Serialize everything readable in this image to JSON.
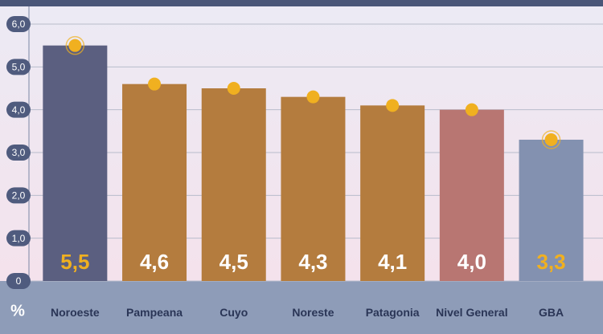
{
  "chart_data": {
    "type": "bar",
    "categories": [
      "Noroeste",
      "Pampeana",
      "Cuyo",
      "Noreste",
      "Patagonia",
      "Nivel General",
      "GBA"
    ],
    "values": [
      5.5,
      4.6,
      4.5,
      4.3,
      4.1,
      4.0,
      3.3
    ],
    "value_labels": [
      "5,5",
      "4,6",
      "4,5",
      "4,3",
      "4,1",
      "4,0",
      "3,3"
    ],
    "colors": [
      "#5b5f80",
      "#b47c3e",
      "#b47c3e",
      "#b47c3e",
      "#b47c3e",
      "#b87672",
      "#8391b0"
    ],
    "value_label_colors": [
      "#f0b020",
      "#ffffff",
      "#ffffff",
      "#ffffff",
      "#ffffff",
      "#ffffff",
      "#f0b020"
    ],
    "marker_color": "#f0b020",
    "y_unit": "%",
    "ylim": [
      0,
      6
    ],
    "yticks": [
      0,
      {
        "value": 1,
        "label": "1,0"
      },
      {
        "value": 2,
        "label": "2,0"
      },
      {
        "value": 3,
        "label": "3,0"
      },
      {
        "value": 4,
        "label": "4,0"
      },
      {
        "value": 5,
        "label": "5,0"
      },
      {
        "value": 6,
        "label": "6,0"
      }
    ],
    "grid": true
  }
}
